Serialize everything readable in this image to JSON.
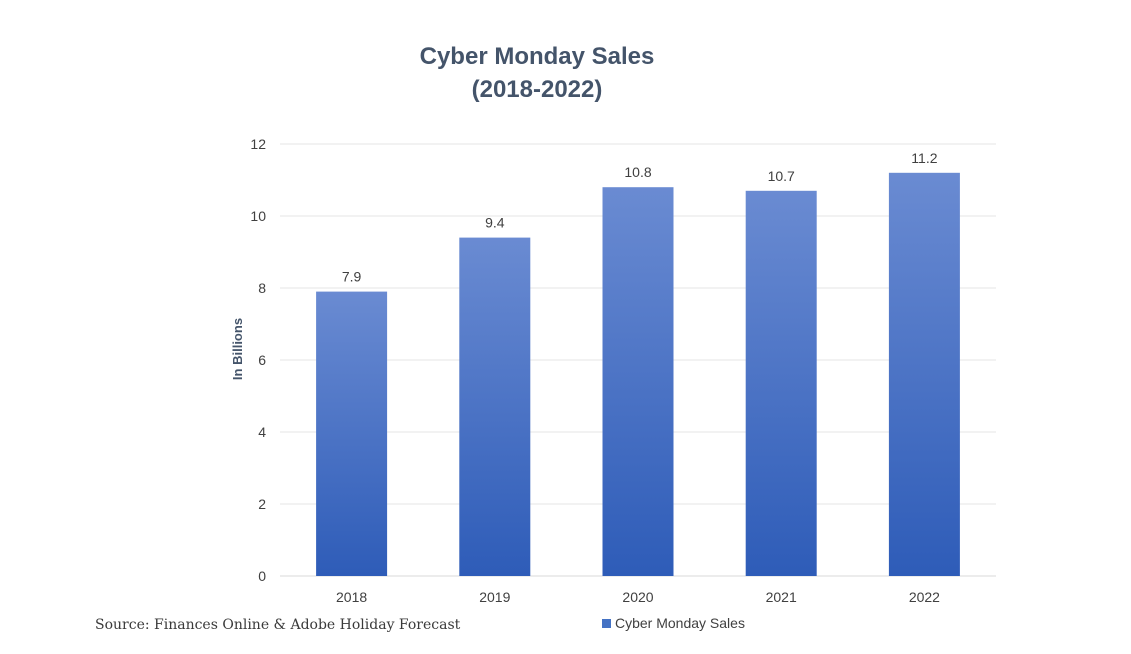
{
  "chart_data": {
    "type": "bar",
    "title": [
      "Cyber Monday Sales",
      "(2018-2022)"
    ],
    "categories": [
      "2018",
      "2019",
      "2020",
      "2021",
      "2022"
    ],
    "series": [
      {
        "name": "Cyber Monday Sales",
        "values": [
          7.9,
          9.4,
          10.8,
          10.7,
          11.2
        ]
      }
    ],
    "data_labels": [
      "7.9",
      "9.4",
      "10.8",
      "10.7",
      "11.2"
    ],
    "xlabel": "",
    "ylabel": "In Billions",
    "ylim": [
      0,
      12
    ],
    "yticks": [
      "0",
      "2",
      "4",
      "6",
      "8",
      "10",
      "12"
    ],
    "grid": true,
    "legend_position": "bottom",
    "colors": {
      "bar_top": "#6a8bd2",
      "bar_bottom": "#2e5cb8",
      "legend": "#4472c4"
    }
  },
  "source_note": "Source: Finances Online & Adobe Holiday Forecast"
}
